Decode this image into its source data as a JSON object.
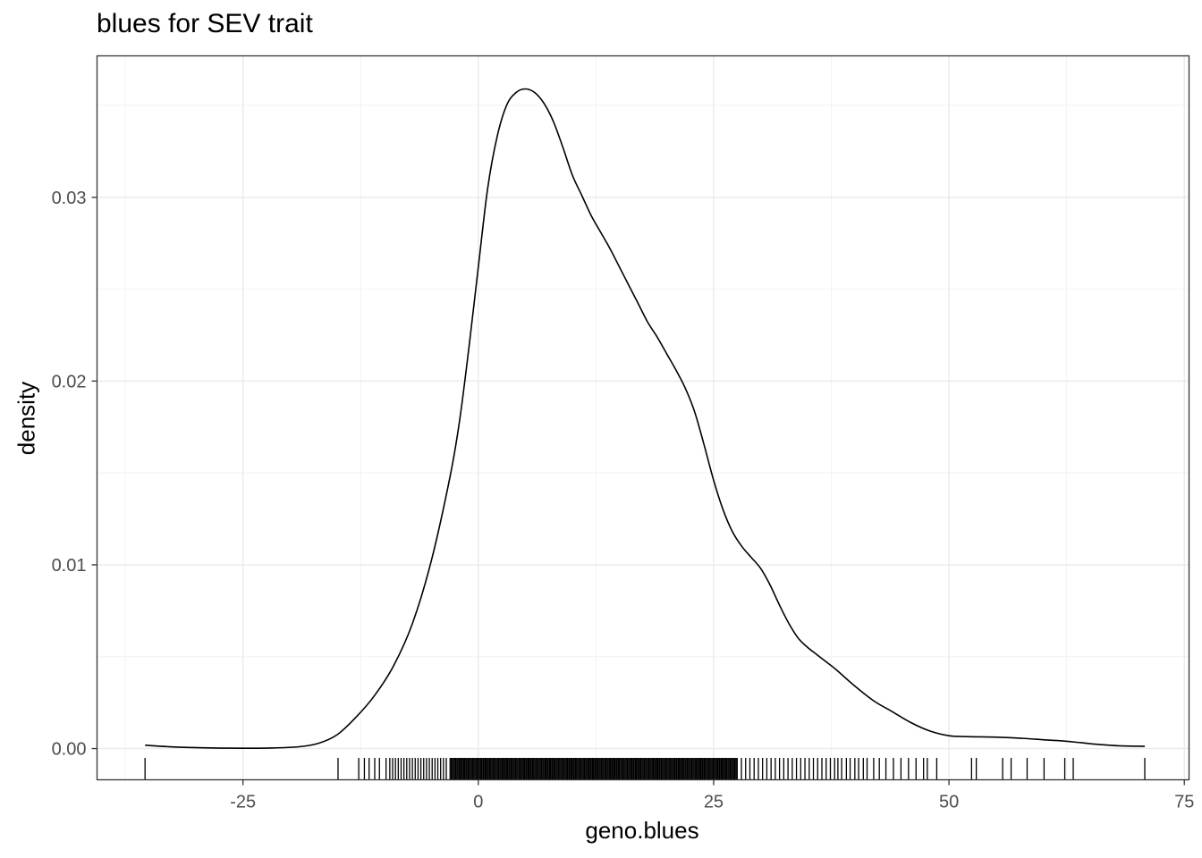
{
  "chart_data": {
    "type": "density",
    "title": "blues for SEV trait",
    "xlabel": "geno.blues",
    "ylabel": "density",
    "xlim": [
      -40.5,
      75.5
    ],
    "ylim": [
      -0.0017,
      0.0377
    ],
    "x_ticks": [
      -25,
      0,
      25,
      50,
      75
    ],
    "x_tick_labels": [
      "-25",
      "0",
      "25",
      "50",
      "75"
    ],
    "y_ticks": [
      0.0,
      0.01,
      0.02,
      0.03
    ],
    "y_tick_labels": [
      "0.00",
      "0.01",
      "0.02",
      "0.03"
    ],
    "grid": true,
    "theme": "bw",
    "line_color": "#000000",
    "density_curve": {
      "x": [
        -35.4,
        -32,
        -28,
        -25,
        -22,
        -19,
        -17,
        -15,
        -13,
        -11,
        -9,
        -7,
        -5,
        -3,
        -2,
        -1,
        0,
        1,
        2,
        3,
        4,
        5,
        6,
        7,
        8,
        9,
        10,
        11,
        12,
        13,
        14,
        15,
        16,
        17,
        18,
        19,
        20,
        21,
        22,
        23,
        24,
        25,
        26,
        27,
        28,
        29,
        30,
        31,
        32,
        33,
        34,
        35,
        36,
        37,
        38,
        40,
        42,
        44,
        46,
        48,
        50,
        52,
        55,
        58,
        60,
        62,
        64,
        66,
        68,
        70.8
      ],
      "y": [
        0.00018,
        8e-05,
        3e-05,
        2e-05,
        3e-05,
        0.0001,
        0.00028,
        0.00075,
        0.0017,
        0.0029,
        0.0045,
        0.0068,
        0.0102,
        0.0148,
        0.0178,
        0.0218,
        0.0262,
        0.0305,
        0.0333,
        0.035,
        0.0357,
        0.0359,
        0.0357,
        0.0351,
        0.0341,
        0.0327,
        0.0312,
        0.0301,
        0.029,
        0.0281,
        0.0272,
        0.0262,
        0.0252,
        0.0242,
        0.0232,
        0.0224,
        0.0215,
        0.0206,
        0.0196,
        0.0183,
        0.0165,
        0.0146,
        0.013,
        0.0118,
        0.011,
        0.0104,
        0.0098,
        0.0089,
        0.0078,
        0.0068,
        0.006,
        0.0055,
        0.0051,
        0.0047,
        0.0043,
        0.0034,
        0.0026,
        0.002,
        0.0014,
        0.00095,
        0.0007,
        0.00065,
        0.00062,
        0.00055,
        0.00048,
        0.00042,
        0.00032,
        0.00022,
        0.00015,
        0.00012
      ]
    },
    "rug": {
      "dense_range": [
        -3,
        27.5
      ],
      "moderate_range": [
        27.5,
        38
      ],
      "x": [
        -35.4,
        -14.9,
        -12.7,
        -12.1,
        -11.6,
        -11.0,
        -10.5,
        -9.8,
        -9.4,
        -9.1,
        -8.8,
        -8.5,
        -8.2,
        -7.9,
        -7.6,
        -7.3,
        -7.0,
        -6.7,
        -6.4,
        -6.1,
        -5.8,
        -5.5,
        -5.2,
        -4.9,
        -4.6,
        -4.3,
        -4.0,
        -3.7,
        -3.4,
        38.2,
        38.6,
        39.1,
        39.5,
        40.0,
        40.4,
        40.9,
        41.3,
        42.0,
        42.6,
        43.3,
        44.1,
        44.9,
        45.7,
        46.5,
        47.3,
        47.7,
        48.7,
        52.4,
        52.9,
        55.7,
        56.6,
        58.3,
        60.1,
        62.3,
        63.2,
        70.8
      ]
    }
  }
}
